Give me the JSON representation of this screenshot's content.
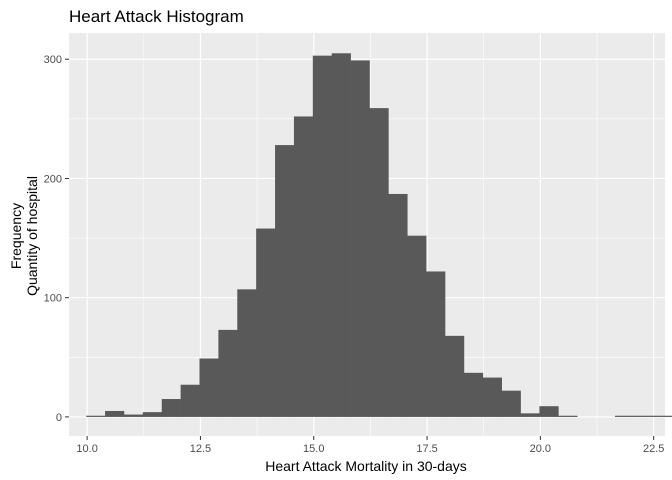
{
  "chart_data": {
    "type": "bar",
    "title": "Heart Attack Histogram",
    "xlabel": "Heart Attack Mortality in 30-days",
    "ylabel_lines": [
      "Frequency",
      "Quantity of hospital"
    ],
    "xlim": [
      9.6,
      22.75
    ],
    "ylim": [
      -16,
      322
    ],
    "x_ticks": [
      10.0,
      12.5,
      15.0,
      17.5,
      20.0,
      22.5
    ],
    "x_tick_labels": [
      "10.0",
      "12.5",
      "15.0",
      "17.5",
      "20.0",
      "22.5"
    ],
    "y_ticks": [
      0,
      100,
      200,
      300
    ],
    "y_tick_labels": [
      "0",
      "100",
      "200",
      "300"
    ],
    "grid": true,
    "colors": {
      "panel": "#ebebeb",
      "grid": "#ffffff",
      "bar": "#595959"
    },
    "bin_width": 0.4167,
    "bin_start": 9.9792,
    "values": [
      1,
      5,
      2,
      4,
      15,
      27,
      49,
      73,
      107,
      158,
      228,
      252,
      303,
      305,
      299,
      259,
      187,
      152,
      122,
      68,
      37,
      33,
      22,
      3,
      9,
      1,
      0,
      0,
      1,
      1,
      1
    ]
  }
}
